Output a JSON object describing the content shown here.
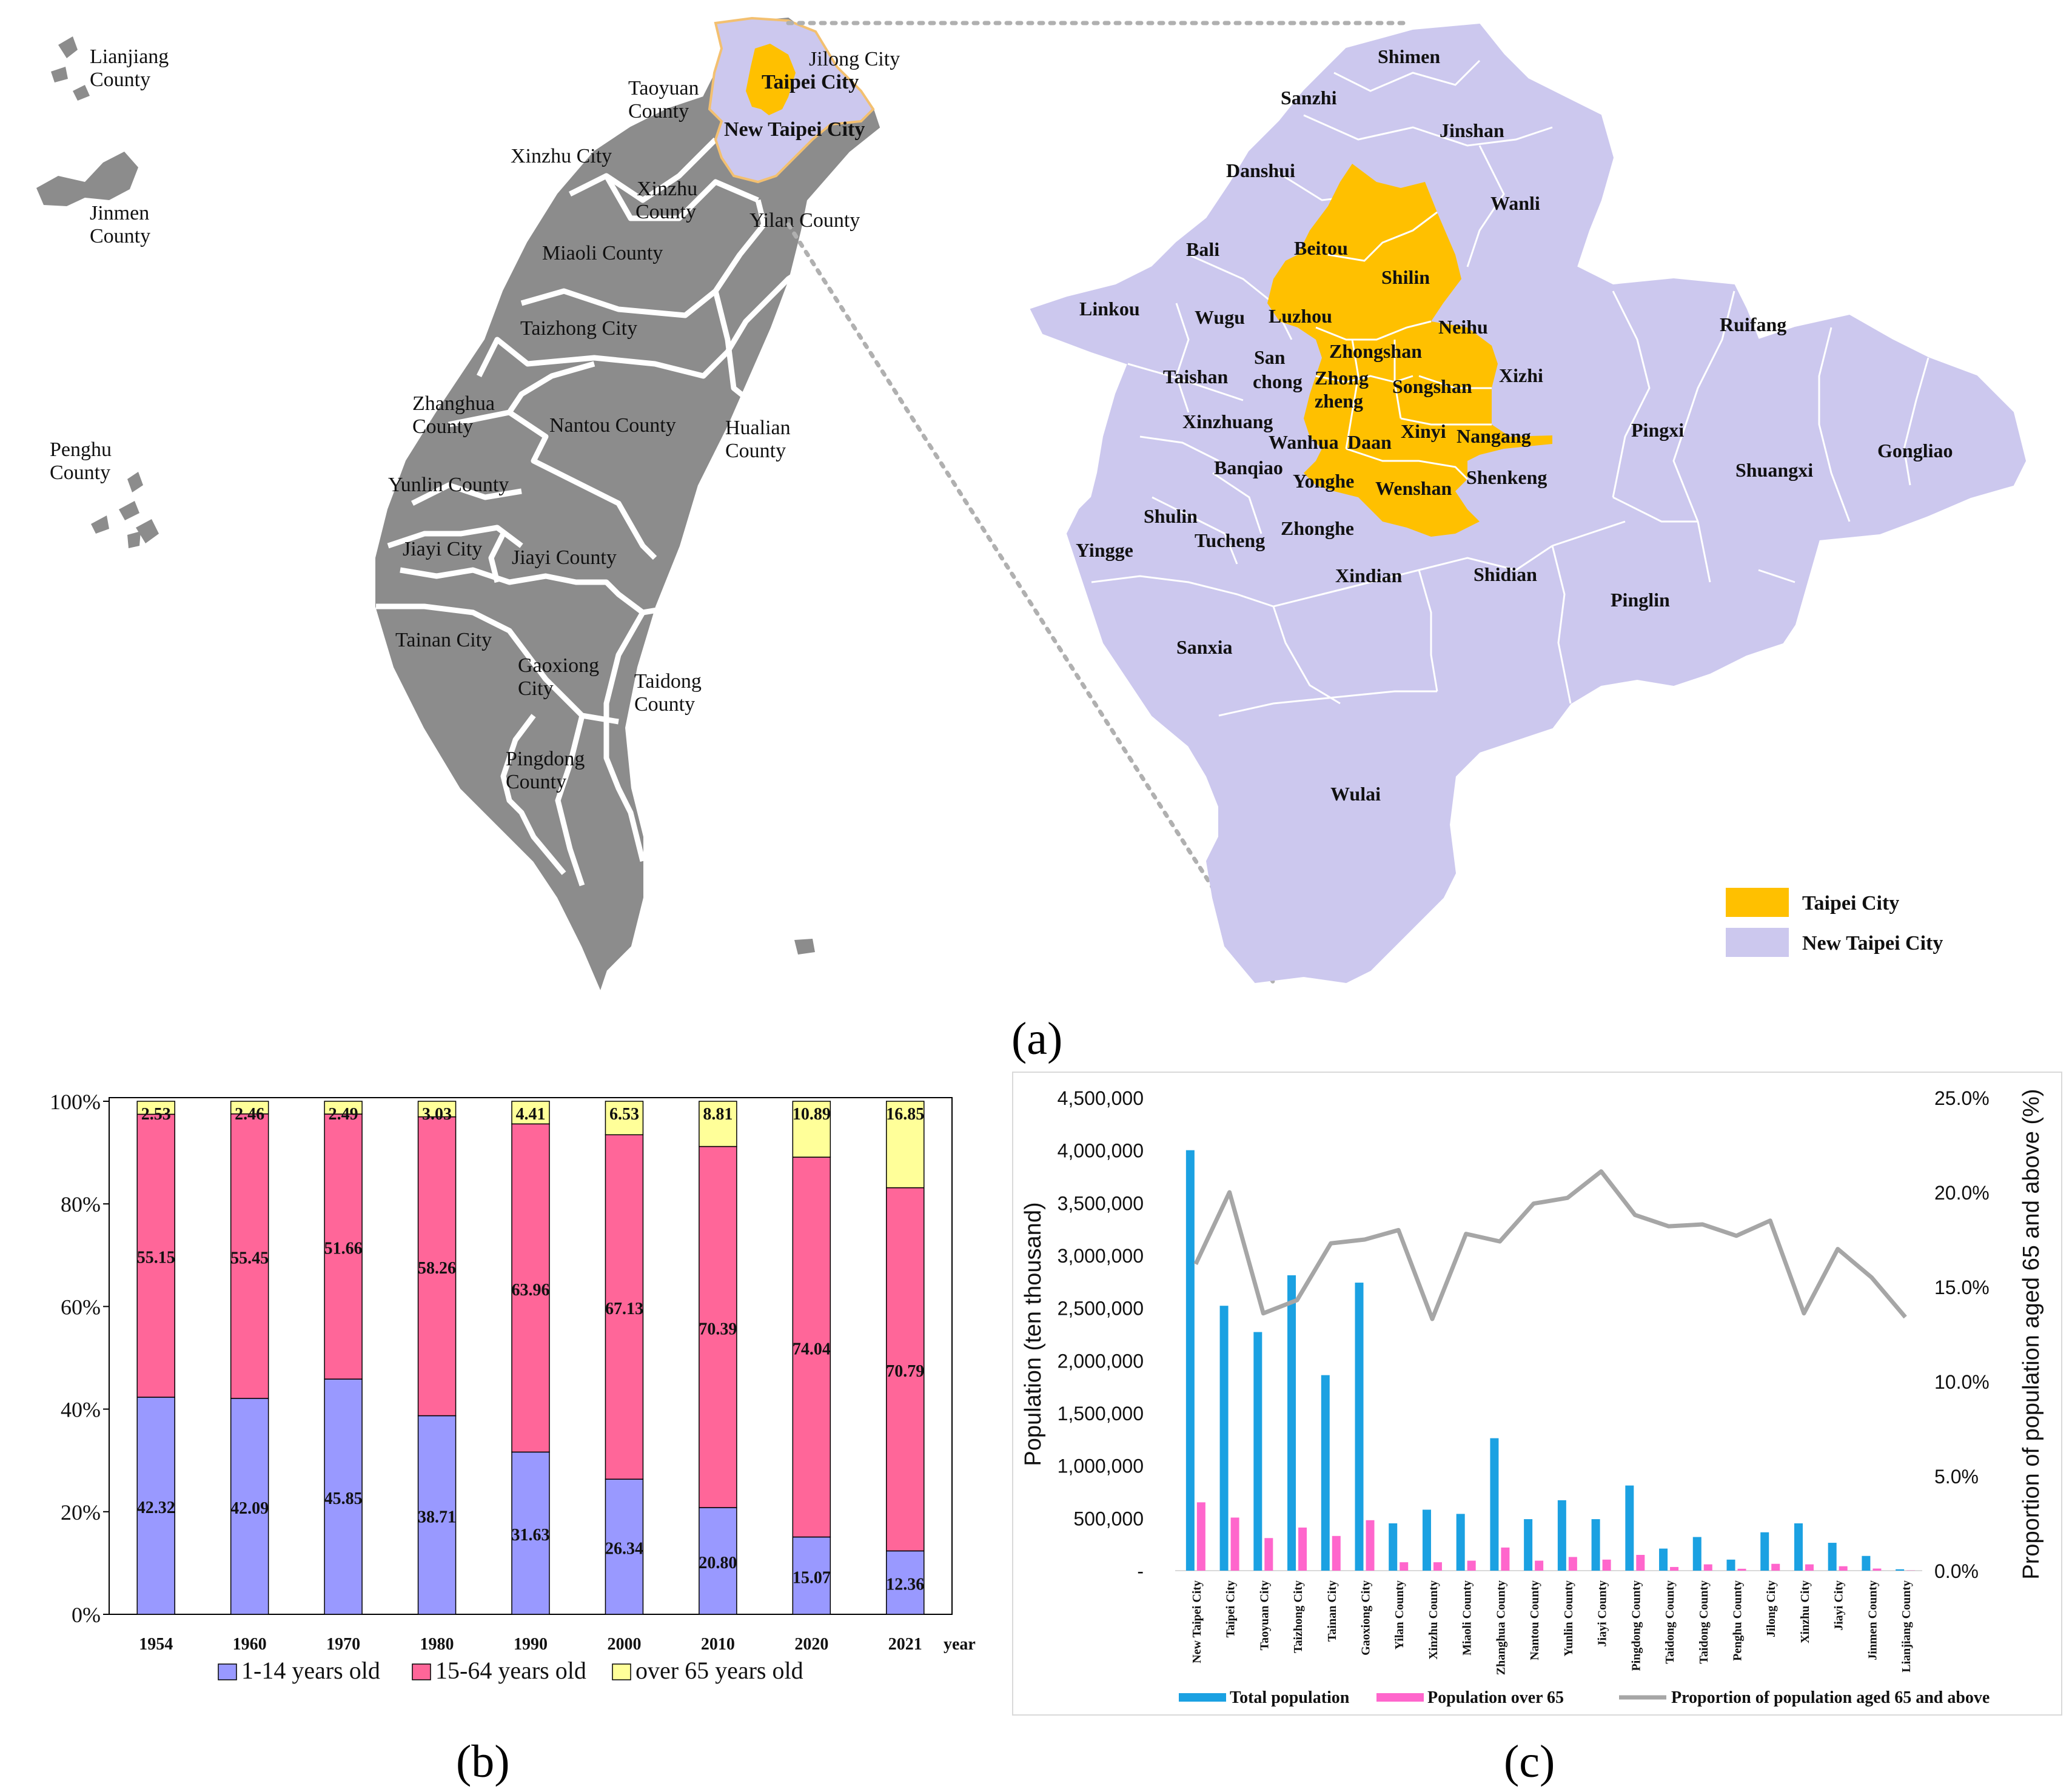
{
  "figure_a": {
    "panel_label": "(a)",
    "taiwan_labels": {
      "lianjiang": [
        "Lianjiang",
        "County"
      ],
      "jinmen": [
        "Jinmen",
        "County"
      ],
      "penghu": [
        "Penghu",
        "County"
      ],
      "taoyuan": [
        "Taoyuan",
        "County"
      ],
      "jilong": "Jilong City",
      "taipei": "Taipei City",
      "new_taipei": "New Taipei City",
      "xinzhu_city": "Xinzhu City",
      "xinzhu_county": [
        "Xinzhu",
        "County"
      ],
      "yilan": "Yilan County",
      "miaoli": "Miaoli County",
      "taizhong": "Taizhong City",
      "zhanghua": [
        "Zhanghua",
        "County"
      ],
      "nantou": "Nantou County",
      "hualian": [
        "Hualian",
        "County"
      ],
      "yunlin": "Yunlin County",
      "jiayi_city": "Jiayi City",
      "jiayi_county": "Jiayi County",
      "tainan": "Tainan City",
      "gaoxiong": [
        "Gaoxiong",
        "City"
      ],
      "taidong": [
        "Taidong",
        "County"
      ],
      "pingdong": [
        "Pingdong",
        "County"
      ]
    },
    "district_labels": {
      "shimen": "Shimen",
      "sanzhi": "Sanzhi",
      "jinshan": "Jinshan",
      "danshui": "Danshui",
      "wanli": "Wanli",
      "bali": "Bali",
      "beitou": "Beitou",
      "shilin": "Shilin",
      "linkou": "Linkou",
      "wugu": "Wugu",
      "luzhou": "Luzhou",
      "neihu": "Neihu",
      "ruifang": "Ruifang",
      "taishan": "Taishan",
      "sanchong": [
        "San",
        "chong"
      ],
      "zhongshan": "Zhongshan",
      "zhongzheng": [
        "Zhong",
        "zheng"
      ],
      "songshan": "Songshan",
      "xizhi": "Xizhi",
      "xinzhuang": "Xinzhuang",
      "wanhua": "Wanhua",
      "daan": "Daan",
      "xinyi": "Xinyi",
      "nangang": "Nangang",
      "pingxi": "Pingxi",
      "gongliao": "Gongliao",
      "banqiao": "Banqiao",
      "yonghe": "Yonghe",
      "shenkeng": "Shenkeng",
      "shuangxi": "Shuangxi",
      "wenshan": "Wenshan",
      "shulin": "Shulin",
      "yingge": "Yingge",
      "tucheng": "Tucheng",
      "zhonghe": "Zhonghe",
      "xindian": "Xindian",
      "shidian": "Shidian",
      "pinglin": "Pinglin",
      "sanxia": "Sanxia",
      "wulai": "Wulai"
    },
    "legend": [
      {
        "label": "Taipei City",
        "color": "#ffc000"
      },
      {
        "label": "New Taipei City",
        "color": "#ccc8ee"
      }
    ],
    "colors": {
      "taiwan_gray": "#8c8c8c",
      "taipei": "#ffc000",
      "new_taipei": "#ccc8ee"
    }
  },
  "chart_data": [
    {
      "panel_label": "(b)",
      "type": "bar",
      "stacked": true,
      "categories": [
        "1954",
        "1960",
        "1970",
        "1980",
        "1990",
        "2000",
        "2010",
        "2020",
        "2021"
      ],
      "x_unit_label": "year",
      "y_ticks": [
        "0%",
        "20%",
        "40%",
        "60%",
        "80%",
        "100%"
      ],
      "ylim": [
        0,
        100
      ],
      "series": [
        {
          "name": "1-14 years old",
          "color": "#9999ff",
          "values": [
            42.32,
            42.09,
            45.85,
            38.71,
            31.63,
            26.34,
            20.8,
            15.07,
            12.36
          ],
          "labels": [
            "42.32",
            "42.09",
            "45.85",
            "38.71",
            "31.63",
            "26.34",
            "20.80",
            "15.07",
            "12.36"
          ]
        },
        {
          "name": "15-64 years old",
          "color": "#ff6699",
          "values": [
            55.15,
            55.45,
            51.66,
            58.26,
            63.96,
            67.13,
            70.39,
            74.04,
            70.79
          ],
          "labels": [
            "55.15",
            "55.45",
            "51.66",
            "58.26",
            "63.96",
            "67.13",
            "70.39",
            "74.04",
            "70.79"
          ]
        },
        {
          "name": "over 65 years old",
          "color": "#ffff99",
          "values": [
            2.53,
            2.46,
            2.49,
            3.03,
            4.41,
            6.53,
            8.81,
            10.89,
            16.85
          ],
          "labels": [
            "2.53",
            "2.46",
            "2.49",
            "3.03",
            "4.41",
            "6.53",
            "8.81",
            "10.89",
            "16.85"
          ]
        }
      ],
      "legend_placement": "bottom"
    },
    {
      "panel_label": "(c)",
      "type": "bar",
      "categories": [
        "New Taipei City",
        "Taipei City",
        "Taoyuan City",
        "Taizhong City",
        "Tainan City",
        "Gaoxiong City",
        "Yilan County",
        "Xinzhu County",
        "Miaoli County",
        "Zhanghua County",
        "Nantou County",
        "Yunlin County",
        "Jiayi County",
        "Pingdong County",
        "Taidong County",
        "Taidong County",
        "Penghu County",
        "Jilong City",
        "Xinzhu City",
        "Jiayi City",
        "Jinmen County",
        "Lianjiang County"
      ],
      "ylabel": "Population (ten thousand)",
      "y2label": "Proportion of population aged 65 and above (%)",
      "ylim": [
        0,
        4500000
      ],
      "y2lim": [
        0,
        25
      ],
      "y_ticks": [
        "-",
        "500,000",
        "1,000,000",
        "1,500,000",
        "2,000,000",
        "2,500,000",
        "3,000,000",
        "3,500,000",
        "4,000,000",
        "4,500,000"
      ],
      "y2_ticks": [
        "0.0%",
        "5.0%",
        "10.0%",
        "15.0%",
        "20.0%",
        "25.0%"
      ],
      "series": [
        {
          "name": "Total population",
          "type": "bar",
          "color": "#1ba1e2",
          "axis": "left",
          "values": [
            4000000,
            2520000,
            2270000,
            2810000,
            1860000,
            2740000,
            450000,
            580000,
            540000,
            1260000,
            490000,
            670000,
            490000,
            810000,
            210000,
            320000,
            105000,
            365000,
            450000,
            265000,
            140000,
            13000
          ]
        },
        {
          "name": "Population over 65",
          "type": "bar",
          "color": "#ff66cc",
          "axis": "left",
          "values": [
            650000,
            505000,
            310000,
            410000,
            330000,
            480000,
            80000,
            80000,
            95000,
            220000,
            95000,
            130000,
            105000,
            150000,
            35000,
            60000,
            18000,
            65000,
            60000,
            42000,
            20000,
            2000
          ]
        },
        {
          "name": "Proportion of population aged 65 and above",
          "type": "line",
          "color": "#a6a6a6",
          "axis": "right",
          "values": [
            16.2,
            20.0,
            13.6,
            14.3,
            17.3,
            17.5,
            18.0,
            13.3,
            17.8,
            17.4,
            19.4,
            19.7,
            21.1,
            18.8,
            18.2,
            18.3,
            17.7,
            18.5,
            13.6,
            17.0,
            15.5,
            13.4
          ]
        }
      ],
      "legend_placement": "bottom"
    }
  ]
}
